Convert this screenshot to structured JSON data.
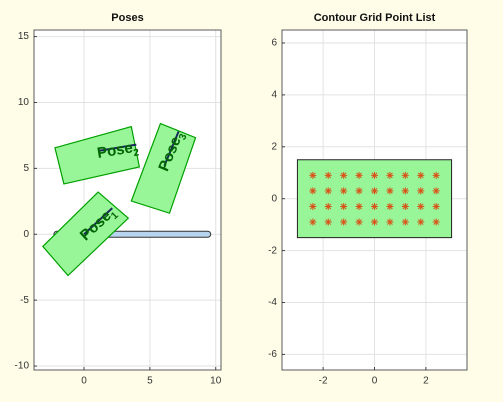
{
  "chart_data": [
    {
      "type": "poses",
      "title": "Poses",
      "xlim": [
        -3.8,
        10.4
      ],
      "ylim": [
        -10.3,
        15.5
      ],
      "xticks": [
        0,
        5,
        10
      ],
      "yticks": [
        -10,
        -5,
        0,
        5,
        10,
        15
      ],
      "grid": true,
      "path": {
        "x": [
          -2.06,
          9.39
        ],
        "y": [
          0,
          0
        ],
        "color": "#b8d4ee"
      },
      "pose_color": "#98f598",
      "pose_edge": "#00a000",
      "label_color": "#006400",
      "poses": [
        {
          "label": "Pose",
          "subscript": "1",
          "x": [
            1.07,
            3.36,
            -1.22,
            -3.13
          ],
          "y": [
            3.2,
            1.22,
            -3.13,
            -0.92
          ],
          "heading": {
            "x": [
              0,
              2.14
            ],
            "y": [
              0,
              1.98
            ]
          }
        },
        {
          "label": "Pose",
          "subscript": "2",
          "x": [
            -2.21,
            3.59,
            4.2,
            -1.53
          ],
          "y": [
            6.56,
            8.17,
            5.11,
            3.82
          ],
          "heading": {
            "x": [
              1.15,
              3.97
            ],
            "y": [
              6.34,
              6.8
            ]
          }
        },
        {
          "label": "Pose",
          "subscript": "3",
          "x": [
            5.8,
            8.47,
            6.49,
            3.59
          ],
          "y": [
            8.4,
            7.33,
            1.6,
            2.52
          ],
          "heading": {
            "x": [
              6.1,
              7.18
            ],
            "y": [
              5.2,
              7.8
            ]
          }
        }
      ]
    },
    {
      "type": "scatter",
      "title": "Contour Grid Point List",
      "xlim": [
        -3.6,
        3.6
      ],
      "ylim": [
        -6.6,
        6.5
      ],
      "xticks": [
        -2,
        0,
        2
      ],
      "yticks": [
        -6,
        -4,
        -2,
        0,
        2,
        4,
        6
      ],
      "grid": true,
      "region": {
        "x": [
          -3,
          3,
          3,
          -3
        ],
        "y": [
          1.5,
          1.5,
          -1.5,
          -1.5
        ],
        "color": "#98f598"
      },
      "series": [
        {
          "color": "#d95319",
          "x": [
            -2.4,
            -1.8,
            -1.2,
            -0.6,
            0,
            0.6,
            1.2,
            1.8,
            2.4,
            -2.4,
            -1.8,
            -1.2,
            -0.6,
            0,
            0.6,
            1.2,
            1.8,
            2.4,
            -2.4,
            -1.8,
            -1.2,
            -0.6,
            0,
            0.6,
            1.2,
            1.8,
            2.4,
            -2.4,
            -1.8,
            -1.2,
            -0.6,
            0,
            0.6,
            1.2,
            1.8,
            2.4
          ],
          "y": [
            0.9,
            0.9,
            0.9,
            0.9,
            0.9,
            0.9,
            0.9,
            0.9,
            0.9,
            0.3,
            0.3,
            0.3,
            0.3,
            0.3,
            0.3,
            0.3,
            0.3,
            0.3,
            -0.3,
            -0.3,
            -0.3,
            -0.3,
            -0.3,
            -0.3,
            -0.3,
            -0.3,
            -0.3,
            -0.9,
            -0.9,
            -0.9,
            -0.9,
            -0.9,
            -0.9,
            -0.9,
            -0.9,
            -0.9
          ]
        }
      ]
    }
  ]
}
